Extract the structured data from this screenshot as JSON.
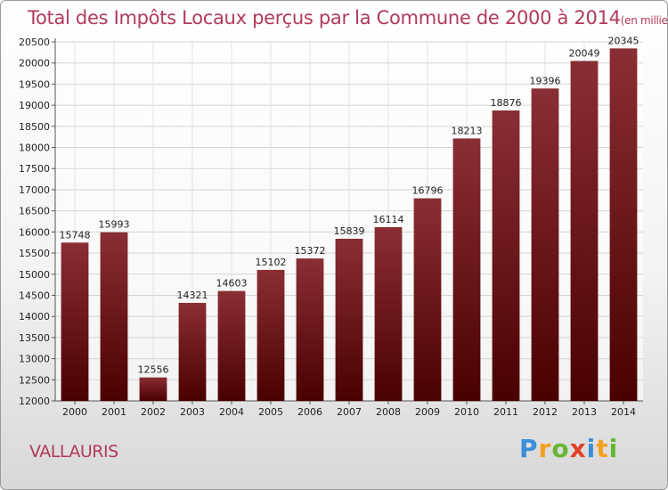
{
  "title": "Total des Impôts Locaux perçus par la Commune de 2000 à 2014",
  "title_unit": "(en milliers d'€)",
  "commune": "VALLAURIS",
  "logo": "Proxiti",
  "colors": {
    "bar_top": "#8a2e35",
    "bar_bottom": "#4a0000",
    "title": "#b23a5a"
  },
  "chart_data": {
    "type": "bar",
    "title": "Total des Impôts Locaux perçus par la Commune de 2000 à 2014",
    "xlabel": "",
    "ylabel": "(en milliers d'€)",
    "ylim": [
      12000,
      20500
    ],
    "yticks": [
      12000,
      12500,
      13000,
      13500,
      14000,
      14500,
      15000,
      15500,
      16000,
      16500,
      17000,
      17500,
      18000,
      18500,
      19000,
      19500,
      20000,
      20500
    ],
    "grid": true,
    "categories": [
      "2000",
      "2001",
      "2002",
      "2003",
      "2004",
      "2005",
      "2006",
      "2007",
      "2008",
      "2009",
      "2010",
      "2011",
      "2012",
      "2013",
      "2014"
    ],
    "values": [
      15748,
      15993,
      12556,
      14321,
      14603,
      15102,
      15372,
      15839,
      16114,
      16796,
      18213,
      18876,
      19396,
      20049,
      20345
    ]
  }
}
